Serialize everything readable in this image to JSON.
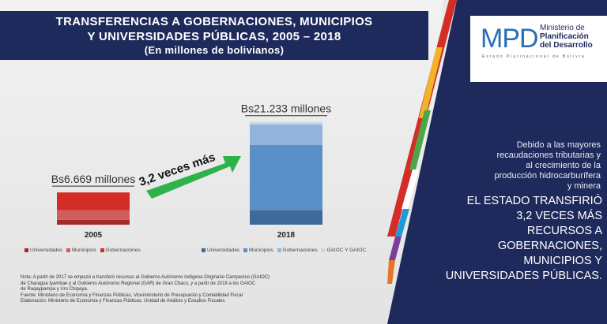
{
  "title": {
    "line1": "TRANSFERENCIAS A GOBERNACIONES, MUNICIPIOS",
    "line2": "Y UNIVERSIDADES PÚBLICAS, 2005 – 2018",
    "line3": "(En millones de bolivianos)"
  },
  "logo": {
    "acronym": "MPD",
    "name1": "Ministerio de",
    "name2": "Planificación",
    "name3": "del Desarrollo",
    "estado": "Estado Plurinacional de Bolivia"
  },
  "panel": {
    "small": [
      "Debido a las mayores",
      "recaudaciones tributarias y",
      "al crecimiento de la",
      "producción hidrocarburífera",
      "y minera"
    ],
    "big": [
      "EL ESTADO TRANSFIRIÓ",
      "3,2 VECES MÁS",
      "RECURSOS A",
      "GOBERNACIONES,",
      "MUNICIPIOS Y",
      "UNIVERSIDADES PÚBLICAS."
    ]
  },
  "chart_data": {
    "type": "bar",
    "stacked": true,
    "categories": [
      "2005",
      "2018"
    ],
    "totals_labels": [
      "Bs6.669 millones",
      "Bs21.233 millones"
    ],
    "annotation": "3,2 veces más",
    "series": [
      {
        "name": "Universidades",
        "values": [
          1000,
          3000
        ],
        "colors": [
          "#a62a25",
          "#3d6a9b"
        ]
      },
      {
        "name": "Municipios",
        "values": [
          2000,
          13500
        ],
        "colors": [
          "#cf5f5e",
          "#5b8fc7"
        ]
      },
      {
        "name": "Gobernaciones",
        "values": [
          3669,
          4200
        ],
        "colors": [
          "#d42d27",
          "#92b3da"
        ]
      },
      {
        "name": "GAIOC Y GAIOC",
        "values": [
          0,
          533
        ],
        "colors": [
          "#d42d27",
          "#c7d7ea"
        ]
      }
    ],
    "legend_2005": [
      "Universidades",
      "Municipios",
      "Gobernaciones"
    ],
    "legend_2018": [
      "Universidades",
      "Municipios",
      "Gobernaciones",
      "GAIOC Y GAIOC"
    ],
    "ylim": [
      0,
      22000
    ]
  },
  "notes": [
    "Nota: A partir de 2017 se empezó a transferir recursos al Gobierno Autónomo Indígena Originario Campesino (GAIOC)",
    "de Charagua Iyambae y al Gobierno Autónomo Regional (GAR) de Gran Chaco, y a partir de 2018 a los GAIOC",
    "de Raqaypampa y Uru Chipaya.",
    "Fuente: Ministerio de Economía y Finanzas Públicas, Viceministerio de Presupuesto y Contabilidad Fiscal",
    "Elaboración: Ministerio de Economía y Finanzas Públicas, Unidad de Análisis y Estudios Fiscales"
  ]
}
